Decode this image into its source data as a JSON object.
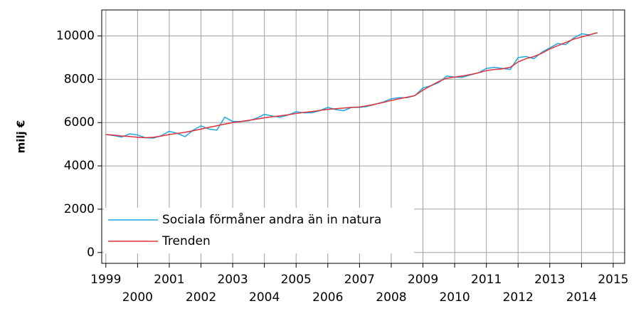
{
  "chart_data": {
    "type": "line",
    "ylabel": "milj €",
    "x": [
      1999,
      1999.25,
      1999.5,
      1999.75,
      2000,
      2000.25,
      2000.5,
      2000.75,
      2001,
      2001.25,
      2001.5,
      2001.75,
      2002,
      2002.25,
      2002.5,
      2002.75,
      2003,
      2003.25,
      2003.5,
      2003.75,
      2004,
      2004.25,
      2004.5,
      2004.75,
      2005,
      2005.25,
      2005.5,
      2005.75,
      2006,
      2006.25,
      2006.5,
      2006.75,
      2007,
      2007.25,
      2007.5,
      2007.75,
      2008,
      2008.25,
      2008.5,
      2008.75,
      2009,
      2009.25,
      2009.5,
      2009.75,
      2010,
      2010.25,
      2010.5,
      2010.75,
      2011,
      2011.25,
      2011.5,
      2011.75,
      2012,
      2012.25,
      2012.5,
      2012.75,
      2013,
      2013.25,
      2013.5,
      2013.75,
      2014,
      2014.25,
      2014.5
    ],
    "series": [
      {
        "name": "Sociala förmåner andra än in natura",
        "color": "#1ea6e0",
        "values": [
          5450,
          5400,
          5330,
          5480,
          5430,
          5300,
          5280,
          5400,
          5600,
          5500,
          5350,
          5650,
          5850,
          5700,
          5650,
          6250,
          6050,
          6050,
          6080,
          6200,
          6380,
          6300,
          6250,
          6350,
          6500,
          6450,
          6450,
          6550,
          6700,
          6600,
          6550,
          6700,
          6700,
          6750,
          6850,
          6950,
          7100,
          7150,
          7150,
          7250,
          7600,
          7700,
          7850,
          8150,
          8100,
          8100,
          8200,
          8300,
          8500,
          8550,
          8500,
          8450,
          9000,
          9050,
          8950,
          9250,
          9450,
          9650,
          9600,
          9900,
          10100,
          10050,
          10150
        ]
      },
      {
        "name": "Trenden",
        "color": "#e0303a",
        "values": [
          5450,
          5420,
          5380,
          5360,
          5320,
          5300,
          5320,
          5380,
          5450,
          5500,
          5550,
          5620,
          5700,
          5780,
          5850,
          5930,
          6000,
          6050,
          6100,
          6160,
          6220,
          6270,
          6310,
          6360,
          6420,
          6470,
          6510,
          6560,
          6610,
          6640,
          6670,
          6700,
          6720,
          6780,
          6850,
          6930,
          7020,
          7100,
          7170,
          7250,
          7500,
          7700,
          7900,
          8050,
          8100,
          8150,
          8220,
          8300,
          8400,
          8450,
          8480,
          8550,
          8800,
          8950,
          9050,
          9200,
          9400,
          9550,
          9700,
          9850,
          9950,
          10050,
          10150
        ]
      }
    ],
    "xlim": [
      1998.87,
      2015.36
    ],
    "xticks": [
      1999,
      2000,
      2001,
      2002,
      2003,
      2004,
      2005,
      2006,
      2007,
      2008,
      2009,
      2010,
      2011,
      2012,
      2013,
      2014,
      2015
    ],
    "ylim": [
      -500,
      11200
    ],
    "yticks": [
      0,
      2000,
      4000,
      6000,
      8000,
      10000
    ],
    "grid": true,
    "legend": "lower left"
  }
}
